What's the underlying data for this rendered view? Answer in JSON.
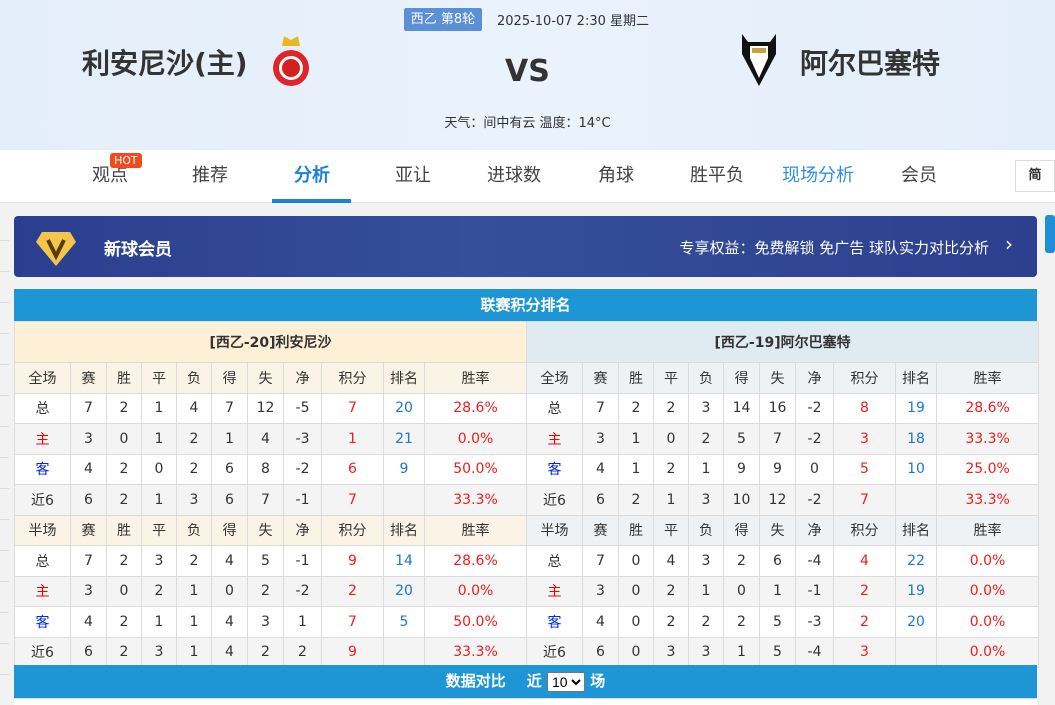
{
  "match": {
    "league_round": "西乙 第8轮",
    "datetime": "2025-10-07 2:30 星期二",
    "home_team": "利安尼沙(主)",
    "away_team": "阿尔巴塞特",
    "vs": "VS",
    "weather": "天气：间中有云 温度：14°C"
  },
  "nav": {
    "tabs": [
      "观点",
      "推荐",
      "分析",
      "亚让",
      "进球数",
      "角球",
      "胜平负",
      "现场分析",
      "会员"
    ],
    "active": "分析",
    "hot_badge": "HOT",
    "lang_button": "简"
  },
  "banner": {
    "title": "新球会员",
    "benefits": "专享权益：免费解锁 免广告 球队实力对比分析",
    "chevron": "›"
  },
  "standings": {
    "title": "联赛积分排名",
    "columns_full": [
      "全场",
      "赛",
      "胜",
      "平",
      "负",
      "得",
      "失",
      "净",
      "积分",
      "排名",
      "胜率"
    ],
    "columns_half": [
      "半场",
      "赛",
      "胜",
      "平",
      "负",
      "得",
      "失",
      "净",
      "积分",
      "排名",
      "胜率"
    ],
    "home": {
      "header": "[西乙-20]利安尼沙",
      "full": [
        [
          "总",
          "7",
          "2",
          "1",
          "4",
          "7",
          "12",
          "-5",
          "7",
          "20",
          "28.6%"
        ],
        [
          "主",
          "3",
          "0",
          "1",
          "2",
          "1",
          "4",
          "-3",
          "1",
          "21",
          "0.0%"
        ],
        [
          "客",
          "4",
          "2",
          "0",
          "2",
          "6",
          "8",
          "-2",
          "6",
          "9",
          "50.0%"
        ],
        [
          "近6",
          "6",
          "2",
          "1",
          "3",
          "6",
          "7",
          "-1",
          "7",
          "",
          "33.3%"
        ]
      ],
      "half": [
        [
          "总",
          "7",
          "2",
          "3",
          "2",
          "4",
          "5",
          "-1",
          "9",
          "14",
          "28.6%"
        ],
        [
          "主",
          "3",
          "0",
          "2",
          "1",
          "0",
          "2",
          "-2",
          "2",
          "20",
          "0.0%"
        ],
        [
          "客",
          "4",
          "2",
          "1",
          "1",
          "4",
          "3",
          "1",
          "7",
          "5",
          "50.0%"
        ],
        [
          "近6",
          "6",
          "2",
          "3",
          "1",
          "4",
          "2",
          "2",
          "9",
          "",
          "33.3%"
        ]
      ]
    },
    "away": {
      "header": "[西乙-19]阿尔巴塞特",
      "full": [
        [
          "总",
          "7",
          "2",
          "2",
          "3",
          "14",
          "16",
          "-2",
          "8",
          "19",
          "28.6%"
        ],
        [
          "主",
          "3",
          "1",
          "0",
          "2",
          "5",
          "7",
          "-2",
          "3",
          "18",
          "33.3%"
        ],
        [
          "客",
          "4",
          "1",
          "2",
          "1",
          "9",
          "9",
          "0",
          "5",
          "10",
          "25.0%"
        ],
        [
          "近6",
          "6",
          "2",
          "1",
          "3",
          "10",
          "12",
          "-2",
          "7",
          "",
          "33.3%"
        ]
      ],
      "half": [
        [
          "总",
          "7",
          "0",
          "4",
          "3",
          "2",
          "6",
          "-4",
          "4",
          "22",
          "0.0%"
        ],
        [
          "主",
          "3",
          "0",
          "2",
          "1",
          "0",
          "1",
          "-1",
          "2",
          "19",
          "0.0%"
        ],
        [
          "客",
          "4",
          "0",
          "2",
          "2",
          "2",
          "5",
          "-3",
          "2",
          "20",
          "0.0%"
        ],
        [
          "近6",
          "6",
          "0",
          "3",
          "3",
          "1",
          "5",
          "-4",
          "3",
          "",
          "0.0%"
        ]
      ]
    }
  },
  "compare": {
    "title": "数据对比",
    "prefix": "近",
    "selected": "10",
    "suffix": "场"
  },
  "colors": {
    "accent": "#1e96d6",
    "points": "#f01c1c",
    "rank": "#1a78d2",
    "banner": "#2c3d8f"
  }
}
